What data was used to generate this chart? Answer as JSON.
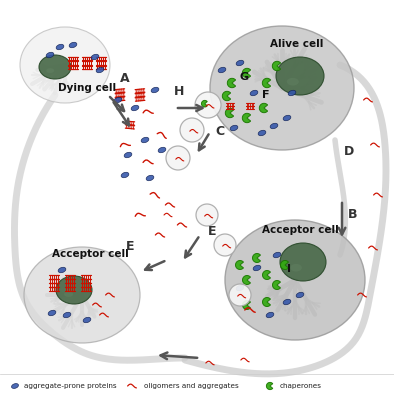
{
  "background_color": "#ffffff",
  "labels": {
    "dying_cell": "Dying cell",
    "alive_cell": "Alive cell",
    "acceptor_cell_right": "Acceptor cell",
    "acceptor_cell_left": "Acceptor cell",
    "A": "A",
    "B": "B",
    "C": "C",
    "D": "D",
    "E": "E",
    "F": "F",
    "G": "G",
    "H": "H",
    "I": "I"
  },
  "aggregate_color": "#cc1100",
  "chaperone_color": "#33aa11",
  "protein_color": "#3355aa",
  "arrow_color": "#555555",
  "cell_body_color": "#d8d8d8",
  "cell_edge_color": "#aaaaaa",
  "dying_cell_color": "#f0f0f0",
  "nucleus_color": "#4a6a4a",
  "axon_color": "#cccccc",
  "legend_dot_color": "#3355aa",
  "legend_agg_color": "#cc1100",
  "legend_chap_color": "#33aa11"
}
